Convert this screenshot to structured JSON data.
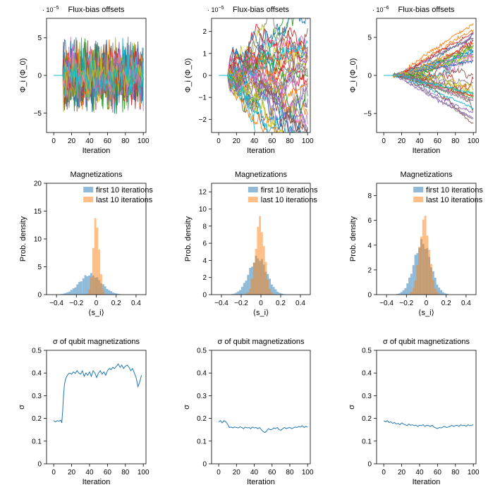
{
  "chart_data": [
    {
      "type": "line",
      "id": "p1",
      "title": "Flux-bias offsets",
      "xlabel": "Iteration",
      "ylabel": "Φ_i (Φ_0)",
      "exponent": {
        "base": "· 10",
        "power": "−5"
      },
      "xlim": [
        -8,
        103
      ],
      "ylim": [
        -7.6,
        7.6
      ],
      "xticks": [
        0,
        20,
        40,
        60,
        80,
        100
      ],
      "xtick_labels": [
        "0",
        "20",
        "40",
        "60",
        "80",
        "100"
      ],
      "yticks": [
        -5,
        0,
        5
      ],
      "ytick_labels": [
        "−5",
        "0",
        "5"
      ],
      "x_start": 0,
      "x_end": 100,
      "flat_until": 10,
      "series_count": 40,
      "pattern": "noise",
      "amplitude": 5.2
    },
    {
      "type": "line",
      "id": "p2",
      "title": "Flux-bias offsets",
      "xlabel": "Iteration",
      "ylabel": "Φ_i (Φ_0)",
      "exponent": {
        "base": "· 10",
        "power": "−5"
      },
      "xlim": [
        -8,
        103
      ],
      "ylim": [
        -2.6,
        2.6
      ],
      "xticks": [
        0,
        20,
        40,
        60,
        80,
        100
      ],
      "xtick_labels": [
        "0",
        "20",
        "40",
        "60",
        "80",
        "100"
      ],
      "yticks": [
        -2,
        -1,
        0,
        1,
        2
      ],
      "ytick_labels": [
        "−2",
        "−1",
        "0",
        "1",
        "2"
      ],
      "x_start": 0,
      "x_end": 100,
      "flat_until": 10,
      "series_count": 40,
      "pattern": "walk",
      "amplitude": 0.2
    },
    {
      "type": "line",
      "id": "p3",
      "title": "Flux-bias offsets",
      "xlabel": "Iteration",
      "ylabel": "Φ_i (Φ_0)",
      "exponent": {
        "base": "· 10",
        "power": "−6"
      },
      "xlim": [
        -8,
        103
      ],
      "ylim": [
        -7.5,
        7.5
      ],
      "xticks": [
        0,
        20,
        40,
        60,
        80,
        100
      ],
      "xtick_labels": [
        "0",
        "20",
        "40",
        "60",
        "80",
        "100"
      ],
      "yticks": [
        -5,
        0,
        5
      ],
      "ytick_labels": [
        "−5",
        "0",
        "5"
      ],
      "x_start": 0,
      "x_end": 100,
      "flat_until": 10,
      "series_count": 40,
      "pattern": "fan",
      "amplitude": 6.2
    },
    {
      "type": "histogram",
      "id": "h1",
      "title": "Magnetizations",
      "xlabel": "⟨s_i⟩",
      "ylabel": "Prob. density",
      "xlim": [
        -0.5,
        0.5
      ],
      "ylim": [
        0,
        20
      ],
      "xticks": [
        -0.4,
        -0.2,
        0,
        0.2,
        0.4
      ],
      "xtick_labels": [
        "−0.4",
        "−0.2",
        "0",
        "0.2",
        "0.4"
      ],
      "yticks": [
        0,
        5,
        10,
        15,
        20
      ],
      "ytick_labels": [
        "0",
        "5",
        "10",
        "15",
        "20"
      ],
      "legend_position": "top-right",
      "series": [
        {
          "name": "first 10 iterations",
          "color": "#1f77b4",
          "center": -0.06,
          "sd": 0.11,
          "peak": 3.6
        },
        {
          "name": "last 10 iterations",
          "color": "#ff7f0e",
          "center": 0.0,
          "sd": 0.03,
          "peak": 13.6
        }
      ]
    },
    {
      "type": "histogram",
      "id": "h2",
      "title": "Magnetizations",
      "xlabel": "⟨s_i⟩",
      "ylabel": "Prob. density",
      "xlim": [
        -0.5,
        0.5
      ],
      "ylim": [
        0,
        13
      ],
      "xticks": [
        -0.4,
        -0.2,
        0,
        0.2,
        0.4
      ],
      "xtick_labels": [
        "−0.4",
        "−0.2",
        "0",
        "0.2",
        "0.4"
      ],
      "yticks": [
        0,
        2,
        4,
        6,
        8,
        10,
        12
      ],
      "ytick_labels": [
        "0",
        "2",
        "4",
        "6",
        "8",
        "10",
        "12"
      ],
      "legend_position": "top-right",
      "series": [
        {
          "name": "first 10 iterations",
          "color": "#1f77b4",
          "center": -0.03,
          "sd": 0.09,
          "peak": 4.3
        },
        {
          "name": "last 10 iterations",
          "color": "#ff7f0e",
          "center": -0.01,
          "sd": 0.045,
          "peak": 8.6
        }
      ]
    },
    {
      "type": "histogram",
      "id": "h3",
      "title": "Magnetizations",
      "xlabel": "⟨s_i⟩",
      "ylabel": "Prob. density",
      "xlim": [
        -0.5,
        0.5
      ],
      "ylim": [
        0,
        9
      ],
      "xticks": [
        -0.4,
        -0.2,
        0,
        0.2,
        0.4
      ],
      "xtick_labels": [
        "−0.4",
        "−0.2",
        "0",
        "0.2",
        "0.4"
      ],
      "yticks": [
        0,
        2,
        4,
        6,
        8
      ],
      "ytick_labels": [
        "0",
        "2",
        "4",
        "6",
        "8"
      ],
      "legend_position": "top-right",
      "series": [
        {
          "name": "first 10 iterations",
          "color": "#1f77b4",
          "center": -0.04,
          "sd": 0.085,
          "peak": 4.2
        },
        {
          "name": "last 10 iterations",
          "color": "#ff7f0e",
          "center": -0.02,
          "sd": 0.05,
          "peak": 6.1
        }
      ]
    },
    {
      "type": "line",
      "id": "s1",
      "title": "σ of qubit magnetizations",
      "xlabel": "Iteration",
      "ylabel": "σ",
      "xlim": [
        -8,
        103
      ],
      "ylim": [
        0,
        0.5
      ],
      "xticks": [
        0,
        20,
        40,
        60,
        80,
        100
      ],
      "xtick_labels": [
        "0",
        "20",
        "40",
        "60",
        "80",
        "100"
      ],
      "yticks": [
        0,
        0.1,
        0.2,
        0.3,
        0.4,
        0.5
      ],
      "ytick_labels": [
        "0",
        "0.1",
        "0.2",
        "0.3",
        "0.4",
        "0.5"
      ],
      "series": [
        {
          "color": "#1f77b4",
          "x": [
            0,
            2,
            4,
            6,
            8,
            9,
            10,
            11,
            12,
            13,
            14,
            16,
            18,
            20,
            22,
            24,
            26,
            28,
            30,
            32,
            34,
            36,
            38,
            40,
            42,
            44,
            46,
            48,
            50,
            52,
            54,
            56,
            58,
            60,
            62,
            64,
            66,
            68,
            70,
            72,
            74,
            76,
            78,
            80,
            82,
            84,
            86,
            88,
            90,
            92,
            94,
            96,
            98
          ],
          "y": [
            0.19,
            0.185,
            0.19,
            0.188,
            0.192,
            0.18,
            0.235,
            0.3,
            0.35,
            0.37,
            0.38,
            0.395,
            0.4,
            0.395,
            0.405,
            0.398,
            0.41,
            0.4,
            0.395,
            0.41,
            0.385,
            0.4,
            0.39,
            0.405,
            0.385,
            0.41,
            0.4,
            0.38,
            0.4,
            0.41,
            0.395,
            0.405,
            0.39,
            0.41,
            0.42,
            0.415,
            0.425,
            0.42,
            0.43,
            0.44,
            0.425,
            0.435,
            0.42,
            0.43,
            0.435,
            0.425,
            0.41,
            0.42,
            0.4,
            0.38,
            0.34,
            0.36,
            0.39
          ]
        }
      ]
    },
    {
      "type": "line",
      "id": "s2",
      "title": "σ of qubit magnetizations",
      "xlabel": "Iteration",
      "ylabel": "σ",
      "xlim": [
        -8,
        103
      ],
      "ylim": [
        0,
        0.5
      ],
      "xticks": [
        0,
        20,
        40,
        60,
        80,
        100
      ],
      "xtick_labels": [
        "0",
        "20",
        "40",
        "60",
        "80",
        "100"
      ],
      "yticks": [
        0,
        0.1,
        0.2,
        0.3,
        0.4,
        0.5
      ],
      "ytick_labels": [
        "0",
        "0.1",
        "0.2",
        "0.3",
        "0.4",
        "0.5"
      ],
      "series": [
        {
          "color": "#1f77b4",
          "x": [
            0,
            2,
            4,
            6,
            8,
            10,
            12,
            14,
            16,
            18,
            20,
            22,
            24,
            26,
            28,
            30,
            32,
            34,
            36,
            38,
            40,
            42,
            44,
            46,
            48,
            50,
            52,
            54,
            56,
            58,
            60,
            62,
            64,
            66,
            68,
            70,
            72,
            74,
            76,
            78,
            80,
            82,
            84,
            86,
            88,
            90,
            92,
            94,
            96,
            98,
            100
          ],
          "y": [
            0.185,
            0.19,
            0.18,
            0.19,
            0.185,
            0.175,
            0.16,
            0.162,
            0.158,
            0.162,
            0.16,
            0.158,
            0.163,
            0.16,
            0.155,
            0.162,
            0.158,
            0.16,
            0.155,
            0.162,
            0.158,
            0.16,
            0.155,
            0.16,
            0.15,
            0.142,
            0.138,
            0.145,
            0.155,
            0.15,
            0.152,
            0.158,
            0.155,
            0.16,
            0.15,
            0.148,
            0.155,
            0.16,
            0.155,
            0.158,
            0.16,
            0.155,
            0.158,
            0.162,
            0.16,
            0.165,
            0.162,
            0.168,
            0.16,
            0.165,
            0.162
          ]
        }
      ]
    },
    {
      "type": "line",
      "id": "s3",
      "title": "σ of qubit magnetizations",
      "xlabel": "Iteration",
      "ylabel": "σ",
      "xlim": [
        -8,
        103
      ],
      "ylim": [
        0,
        0.5
      ],
      "xticks": [
        0,
        20,
        40,
        60,
        80,
        100
      ],
      "xtick_labels": [
        "0",
        "20",
        "40",
        "60",
        "80",
        "100"
      ],
      "yticks": [
        0,
        0.1,
        0.2,
        0.3,
        0.4,
        0.5
      ],
      "ytick_labels": [
        "0",
        "0.1",
        "0.2",
        "0.3",
        "0.4",
        "0.5"
      ],
      "series": [
        {
          "color": "#1f77b4",
          "x": [
            0,
            2,
            4,
            6,
            8,
            10,
            12,
            14,
            16,
            18,
            20,
            22,
            24,
            26,
            28,
            30,
            32,
            34,
            36,
            38,
            40,
            42,
            44,
            46,
            48,
            50,
            52,
            54,
            56,
            58,
            60,
            62,
            64,
            66,
            68,
            70,
            72,
            74,
            76,
            78,
            80,
            82,
            84,
            86,
            88,
            90,
            92,
            94,
            96,
            98,
            100
          ],
          "y": [
            0.19,
            0.185,
            0.19,
            0.182,
            0.185,
            0.178,
            0.182,
            0.175,
            0.178,
            0.172,
            0.18,
            0.175,
            0.172,
            0.168,
            0.175,
            0.17,
            0.172,
            0.168,
            0.17,
            0.165,
            0.17,
            0.168,
            0.172,
            0.165,
            0.17,
            0.168,
            0.165,
            0.17,
            0.162,
            0.158,
            0.155,
            0.16,
            0.158,
            0.162,
            0.165,
            0.16,
            0.162,
            0.165,
            0.17,
            0.165,
            0.168,
            0.17,
            0.165,
            0.172,
            0.168,
            0.17,
            0.165,
            0.172,
            0.168,
            0.17,
            0.172
          ]
        }
      ]
    }
  ]
}
